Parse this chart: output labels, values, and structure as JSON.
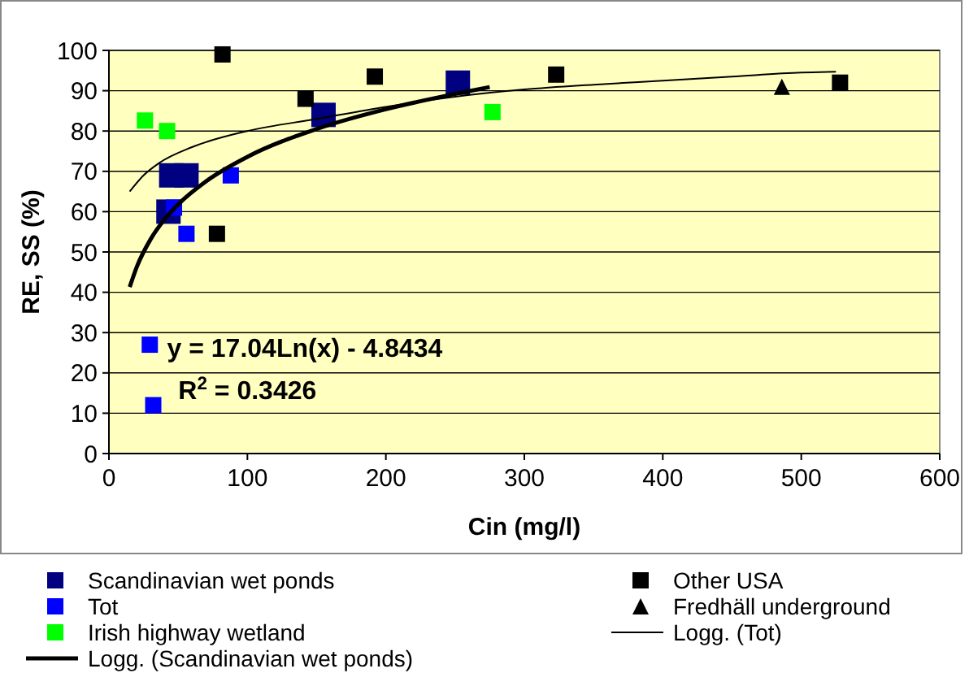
{
  "chart_data": {
    "type": "scatter",
    "xlabel": "Cin (mg/l)",
    "ylabel": "RE, SS (%)",
    "xlim": [
      0,
      600
    ],
    "xticks": [
      0,
      100,
      200,
      300,
      400,
      500,
      600
    ],
    "ylim": [
      0,
      100
    ],
    "yticks": [
      0,
      10,
      20,
      30,
      40,
      50,
      60,
      70,
      80,
      90,
      100
    ],
    "grid": "y",
    "legend": "bottom",
    "annotations": [
      "y = 17.04Ln(x) - 4.8434",
      "R$^{2}$ = 0.3426"
    ],
    "series": [
      {
        "name": "Scandinavian wet ponds",
        "color": "#000080",
        "marker": "square",
        "x": [
          45,
          56,
          43,
          155,
          252
        ],
        "values": [
          69,
          69,
          60,
          84,
          92
        ]
      },
      {
        "name": "Other USA",
        "color": "#000000",
        "marker": "square",
        "x": [
          82,
          142,
          78,
          192,
          323,
          528
        ],
        "values": [
          99,
          88,
          54.5,
          93.5,
          94,
          92
        ]
      },
      {
        "name": "Tot",
        "color": "#0000ff",
        "marker": "square",
        "x": [
          29.5,
          32,
          47,
          56,
          88
        ],
        "values": [
          27,
          12,
          61,
          54.5,
          69
        ]
      },
      {
        "name": "Fredhäll underground",
        "color": "#000000",
        "marker": "triangle",
        "x": [
          486
        ],
        "values": [
          91
        ]
      },
      {
        "name": "Irish highway wetland",
        "color": "#00ff00",
        "marker": "square",
        "x": [
          26,
          42,
          277
        ],
        "values": [
          82.6,
          80,
          84.7
        ]
      },
      {
        "name": "Logg. (Tot)",
        "type": "line",
        "color": "#000000",
        "marker": "none",
        "x": [
          15,
          25,
          36,
          60,
          100,
          150,
          200,
          250,
          300,
          350,
          400,
          450,
          500,
          525
        ],
        "values": [
          65,
          69,
          72,
          76,
          80,
          83,
          86,
          88.5,
          90.3,
          91.5,
          92.5,
          93.5,
          94.5,
          94.7
        ]
      },
      {
        "name": "Logg. (Scandinavian wet ponds)",
        "type": "line",
        "color": "#000000",
        "marker": "none",
        "x": [
          15,
          20,
          30,
          40,
          50,
          70,
          100,
          150,
          200,
          250,
          275
        ],
        "values": [
          41.3,
          46.2,
          53.1,
          58,
          61.8,
          67.5,
          73.6,
          80.5,
          85.4,
          89.2,
          90.9
        ]
      }
    ]
  }
}
